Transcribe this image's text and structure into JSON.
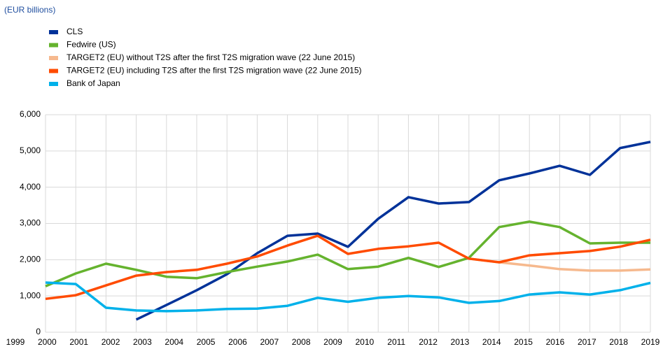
{
  "chart_data": {
    "type": "line",
    "subtitle": "(EUR billions)",
    "x": [
      1999,
      2000,
      2001,
      2002,
      2003,
      2004,
      2005,
      2006,
      2007,
      2008,
      2009,
      2010,
      2011,
      2012,
      2013,
      2014,
      2015,
      2016,
      2017,
      2018,
      2019
    ],
    "xlim": [
      1999,
      2019
    ],
    "xticks": [
      1999,
      2000,
      2001,
      2002,
      2003,
      2004,
      2005,
      2006,
      2007,
      2008,
      2009,
      2010,
      2011,
      2012,
      2013,
      2014,
      2015,
      2016,
      2017,
      2018,
      2019
    ],
    "ylim": [
      0,
      6000
    ],
    "yticks": [
      0,
      {
        "value": 1000,
        "label": "1,000"
      },
      {
        "value": 2000,
        "label": "2,000"
      },
      {
        "value": 3000,
        "label": "3,000"
      },
      {
        "value": 4000,
        "label": "4,000"
      },
      {
        "value": 5000,
        "label": "5,000"
      },
      {
        "value": 6000,
        "label": "6,000"
      }
    ],
    "grid": true,
    "legend": "top-left",
    "series": [
      {
        "name": "CLS",
        "color": "#003299",
        "values": [
          null,
          null,
          null,
          350,
          750,
          1160,
          1600,
          2180,
          2660,
          2720,
          2355,
          3130,
          3725,
          3550,
          3590,
          4190,
          4380,
          4590,
          4340,
          5080,
          5250
        ]
      },
      {
        "name": "Fedwire (US)",
        "color": "#65b32e",
        "values": [
          1270,
          1620,
          1890,
          1720,
          1530,
          1490,
          1660,
          1810,
          1950,
          2140,
          1740,
          1810,
          2050,
          1800,
          2050,
          2900,
          3050,
          2900,
          2450,
          2470,
          2470
        ]
      },
      {
        "name": "TARGET2 (EU) without T2S after the first T2S migration wave (22 June 2015)",
        "color": "#f6b98e",
        "values": [
          null,
          null,
          null,
          null,
          null,
          null,
          null,
          null,
          null,
          null,
          null,
          null,
          null,
          null,
          2030,
          1930,
          1840,
          1740,
          1700,
          1700,
          1730
        ]
      },
      {
        "name": "TARGET2 (EU) including T2S after the first T2S migration wave (22 June 2015)",
        "color": "#ff4b00",
        "values": [
          920,
          1020,
          1290,
          1560,
          1660,
          1720,
          1890,
          2090,
          2390,
          2660,
          2160,
          2300,
          2370,
          2470,
          2030,
          1930,
          2120,
          2180,
          2240,
          2360,
          2550
        ]
      },
      {
        "name": "Bank of Japan",
        "color": "#00b1ea",
        "values": [
          1370,
          1330,
          675,
          600,
          580,
          600,
          640,
          650,
          730,
          950,
          840,
          950,
          1000,
          960,
          810,
          860,
          1040,
          1100,
          1040,
          1160,
          1360
        ]
      }
    ]
  }
}
